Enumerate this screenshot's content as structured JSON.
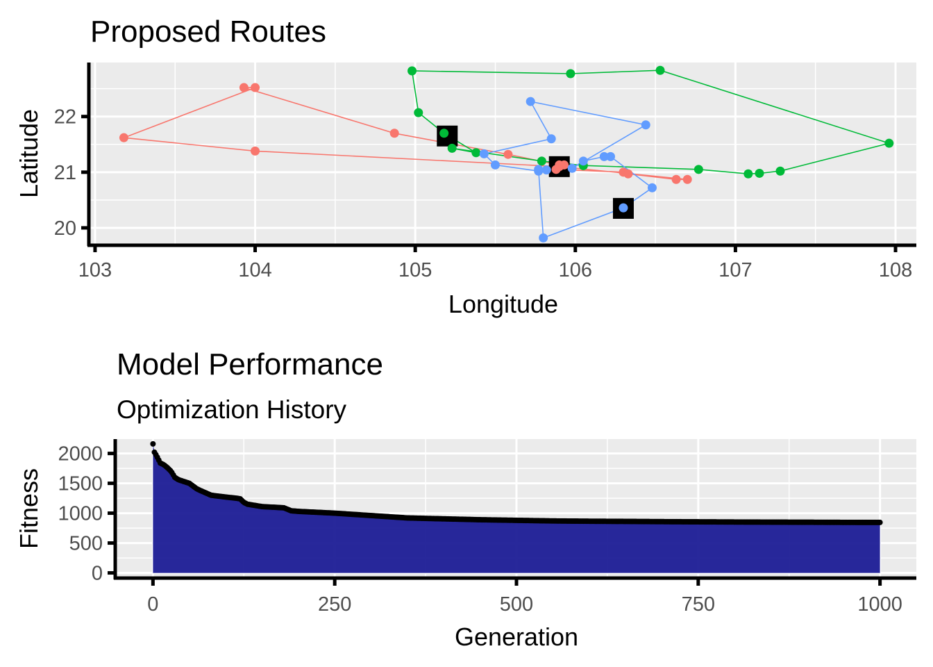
{
  "chart_data": [
    {
      "type": "scatter",
      "title": "Proposed Routes",
      "xlabel": "Longitude",
      "ylabel": "Latitude",
      "xlim": [
        102.97,
        108.13
      ],
      "ylim": [
        19.7,
        22.97
      ],
      "xticks": [
        "103",
        "104",
        "105",
        "106",
        "107",
        "108"
      ],
      "yticks": [
        "20",
        "21",
        "22"
      ],
      "grid": true,
      "legend": "none",
      "colors": {
        "route_1": "#F8766D",
        "route_2": "#00BA38",
        "route_3": "#619CFF",
        "depot": "#000000",
        "panel": "#EBEBEB"
      },
      "series": [
        {
          "points": [
            [
              105.88,
              21.05
            ],
            [
              106.3,
              21.0
            ],
            [
              106.33,
              20.97
            ],
            [
              106.63,
              20.87
            ],
            [
              106.7,
              20.87
            ],
            [
              105.9,
              21.1
            ],
            [
              104.0,
              21.38
            ],
            [
              103.18,
              21.62
            ],
            [
              104.0,
              22.52
            ],
            [
              103.93,
              22.52
            ],
            [
              104.87,
              21.7
            ],
            [
              105.58,
              21.32
            ],
            [
              105.9,
              21.13
            ],
            [
              105.93,
              21.13
            ]
          ]
        },
        {
          "points": [
            [
              106.05,
              21.12
            ],
            [
              105.79,
              21.2
            ],
            [
              105.23,
              21.43
            ],
            [
              105.38,
              21.35
            ],
            [
              105.18,
              21.7
            ],
            [
              105.02,
              22.07
            ],
            [
              104.98,
              22.82
            ],
            [
              105.97,
              22.77
            ],
            [
              106.53,
              22.83
            ],
            [
              107.96,
              21.52
            ],
            [
              107.28,
              21.02
            ],
            [
              107.15,
              20.98
            ],
            [
              107.08,
              20.97
            ],
            [
              106.77,
              21.05
            ],
            [
              106.05,
              21.12
            ]
          ]
        },
        {
          "points": [
            [
              105.82,
              21.04
            ],
            [
              105.77,
              21.02
            ],
            [
              105.5,
              21.13
            ],
            [
              105.43,
              21.33
            ],
            [
              105.85,
              21.6
            ],
            [
              105.72,
              22.27
            ],
            [
              106.44,
              21.85
            ],
            [
              105.98,
              21.07
            ],
            [
              106.05,
              21.2
            ],
            [
              106.18,
              21.28
            ],
            [
              106.22,
              21.28
            ],
            [
              106.48,
              20.72
            ],
            [
              106.3,
              20.36
            ],
            [
              105.8,
              19.82
            ],
            [
              105.77,
              21.05
            ]
          ]
        }
      ],
      "depots": [
        [
          105.2,
          21.65
        ],
        [
          105.9,
          21.1
        ],
        [
          106.3,
          20.35
        ]
      ]
    },
    {
      "type": "area",
      "title": "Model Performance",
      "subtitle": "Optimization History",
      "xlabel": "Generation",
      "ylabel": "Fitness",
      "xlim": [
        -50,
        1050
      ],
      "ylim": [
        -75,
        2240
      ],
      "xticks": [
        "0",
        "250",
        "500",
        "750",
        "1000"
      ],
      "yticks": [
        "0",
        "500",
        "1000",
        "1500",
        "2000"
      ],
      "grid": true,
      "legend": "none",
      "colors": {
        "fill": "#1C1C96",
        "points": "#000000"
      },
      "x": [
        0,
        2,
        5,
        10,
        15,
        20,
        25,
        30,
        35,
        50,
        60,
        65,
        80,
        100,
        115,
        120,
        125,
        130,
        150,
        180,
        190,
        200,
        250,
        300,
        350,
        400,
        450,
        500,
        550,
        600,
        650,
        700,
        750,
        800,
        850,
        900,
        950,
        1000
      ],
      "values": [
        2160,
        2020,
        1960,
        1840,
        1810,
        1760,
        1700,
        1600,
        1560,
        1500,
        1410,
        1380,
        1300,
        1270,
        1250,
        1240,
        1180,
        1150,
        1110,
        1090,
        1040,
        1030,
        1000,
        960,
        920,
        905,
        890,
        880,
        870,
        865,
        862,
        858,
        855,
        852,
        850,
        848,
        846,
        845
      ]
    }
  ]
}
